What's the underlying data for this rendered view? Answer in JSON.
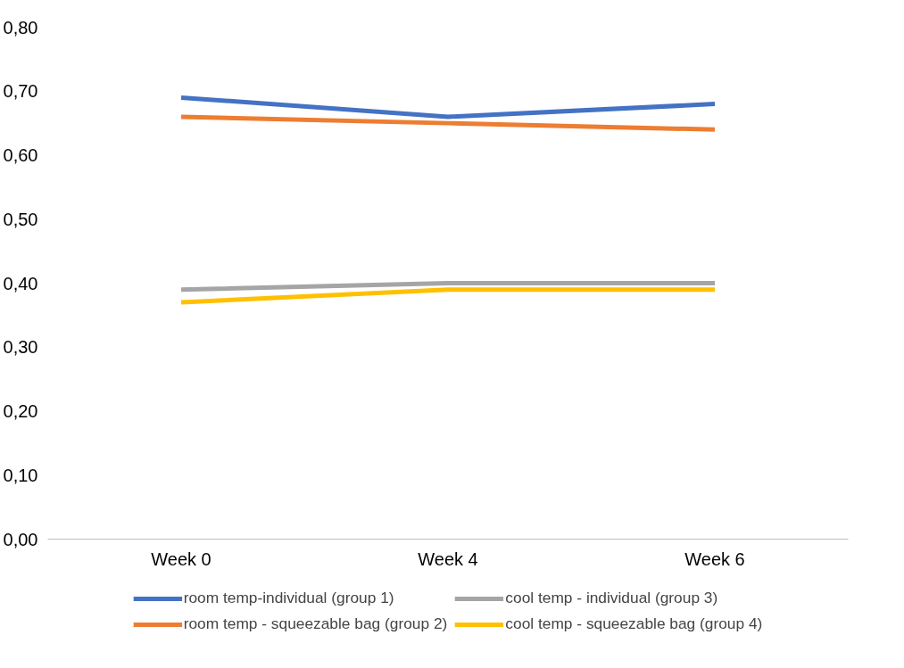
{
  "chart_data": {
    "type": "line",
    "categories": [
      "Week 0",
      "Week 4",
      "Week 6"
    ],
    "series": [
      {
        "name": "room temp-individual (group 1)",
        "color": "#4472c4",
        "values": [
          0.69,
          0.66,
          0.68
        ]
      },
      {
        "name": "room temp - squeezable bag (group 2)",
        "color": "#ed7d31",
        "values": [
          0.66,
          0.65,
          0.64
        ]
      },
      {
        "name": "cool temp - individual (group 3)",
        "color": "#a5a5a5",
        "values": [
          0.39,
          0.4,
          0.4
        ]
      },
      {
        "name": "cool temp - squeezable bag (group 4)",
        "color": "#ffc000",
        "values": [
          0.37,
          0.39,
          0.39
        ]
      }
    ],
    "ylim": [
      0,
      0.8
    ],
    "yticks": [
      {
        "value": 0,
        "label": "0,00"
      },
      {
        "value": 0.1,
        "label": "0,10"
      },
      {
        "value": 0.2,
        "label": "0,20"
      },
      {
        "value": 0.3,
        "label": "0,30"
      },
      {
        "value": 0.4,
        "label": "0,40"
      },
      {
        "value": 0.5,
        "label": "0,50"
      },
      {
        "value": 0.6,
        "label": "0,60"
      },
      {
        "value": 0.7,
        "label": "0,70"
      },
      {
        "value": 0.8,
        "label": "0,80"
      }
    ],
    "grid": false,
    "legend": "bottom",
    "marker": "none",
    "line_style": "solid"
  }
}
